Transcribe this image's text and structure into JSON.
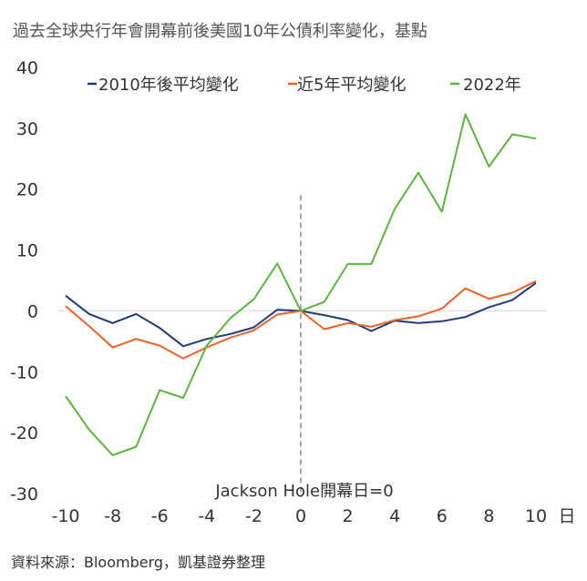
{
  "title": "過去全球央行年會開幕前後美國10年公債利率變化，基點",
  "source": "資料來源：Bloomberg，凱基證券整理",
  "chart_data": {
    "type": "line",
    "title": "過去全球央行年會開幕前後美國10年公債利率變化，基點",
    "x": [
      -10,
      -9,
      -8,
      -7,
      -6,
      -5,
      -4,
      -3,
      -2,
      -1,
      0,
      1,
      2,
      3,
      4,
      5,
      6,
      7,
      8,
      9,
      10
    ],
    "xlim": [
      -10,
      10
    ],
    "ylim": [
      -30,
      40
    ],
    "x_ticks": [
      -10,
      -8,
      -6,
      -4,
      -2,
      0,
      2,
      4,
      6,
      8,
      10
    ],
    "y_ticks": [
      40,
      30,
      20,
      10,
      0,
      -10,
      -20,
      -30
    ],
    "x_unit": "日",
    "legend_position": "top",
    "annotation": "Jackson Hole開幕日=0",
    "series": [
      {
        "name": "2010年後平均變化",
        "color": "#1f3c7a",
        "values": [
          2.5,
          -0.5,
          -2.0,
          -0.5,
          -2.8,
          -5.8,
          -4.6,
          -3.8,
          -2.7,
          0.2,
          0.0,
          -0.7,
          -1.5,
          -3.3,
          -1.6,
          -2.0,
          -1.7,
          -1.0,
          0.6,
          1.8,
          4.6
        ]
      },
      {
        "name": "近5年平均變化",
        "color": "#e8622a",
        "values": [
          0.8,
          -2.5,
          -6.0,
          -4.6,
          -5.7,
          -7.8,
          -6.0,
          -4.4,
          -3.2,
          -0.6,
          0.0,
          -3.0,
          -2.0,
          -2.6,
          -1.5,
          -0.9,
          0.4,
          3.7,
          2.0,
          3.0,
          4.9
        ]
      },
      {
        "name": "2022年",
        "color": "#5bb53f",
        "values": [
          -14.0,
          -19.5,
          -23.7,
          -22.3,
          -13.0,
          -14.3,
          -5.7,
          -1.2,
          1.9,
          7.8,
          0.0,
          1.5,
          7.7,
          7.7,
          16.8,
          22.7,
          16.3,
          32.3,
          23.7,
          29.0,
          28.3
        ]
      }
    ]
  }
}
